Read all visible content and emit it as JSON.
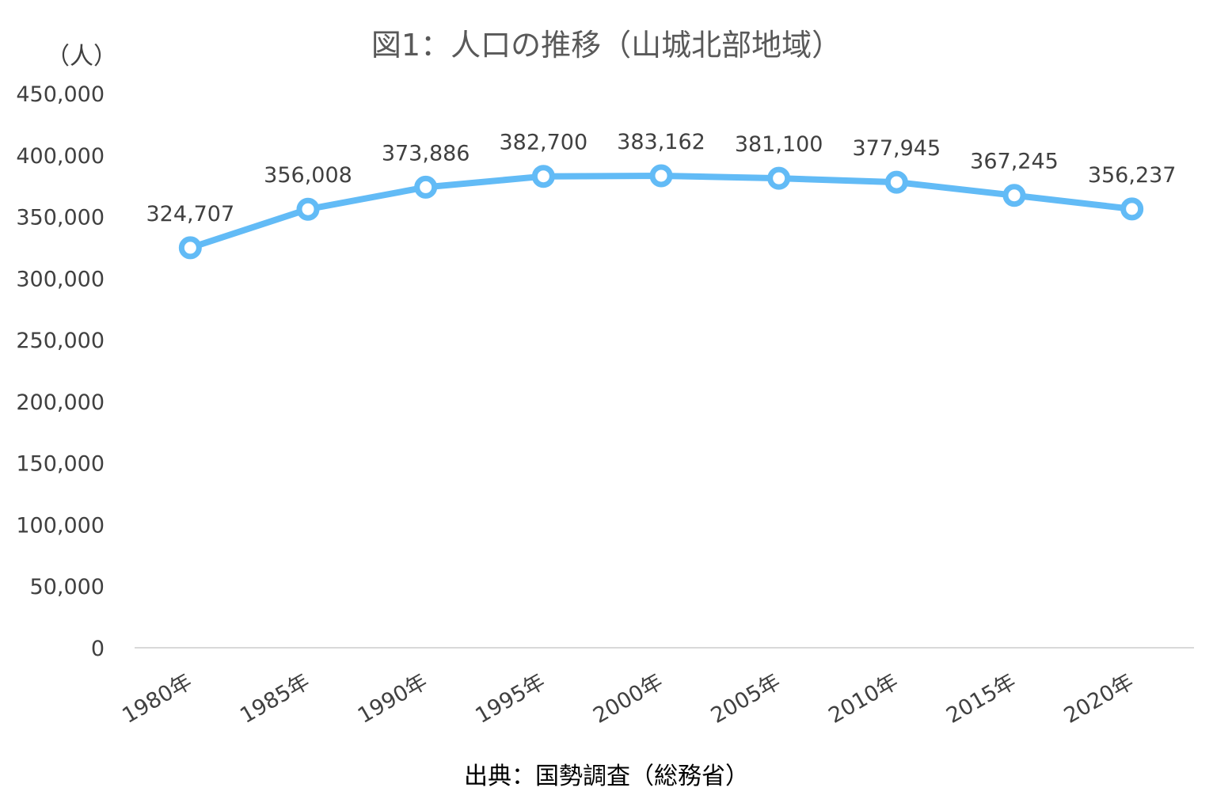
{
  "chart_data": {
    "type": "line",
    "title": "図1：人口の推移（山城北部地域）",
    "ylabel": "（人）",
    "categories": [
      "1980年",
      "1985年",
      "1990年",
      "1995年",
      "2000年",
      "2005年",
      "2010年",
      "2015年",
      "2020年"
    ],
    "series": [
      {
        "values": [
          324707,
          356008,
          373886,
          382700,
          383162,
          381100,
          377945,
          367245,
          356237
        ]
      }
    ],
    "data_labels": [
      "324,707",
      "356,008",
      "373,886",
      "382,700",
      "383,162",
      "381,100",
      "377,945",
      "367,245",
      "356,237"
    ],
    "y_ticks": [
      "0",
      "50,000",
      "100,000",
      "150,000",
      "200,000",
      "250,000",
      "300,000",
      "350,000",
      "400,000",
      "450,000"
    ],
    "ylim": [
      0,
      450000
    ],
    "grid": false,
    "legend": "none",
    "line_color": "#62bbf6"
  },
  "source": "出典：国勢調査（総務省）"
}
